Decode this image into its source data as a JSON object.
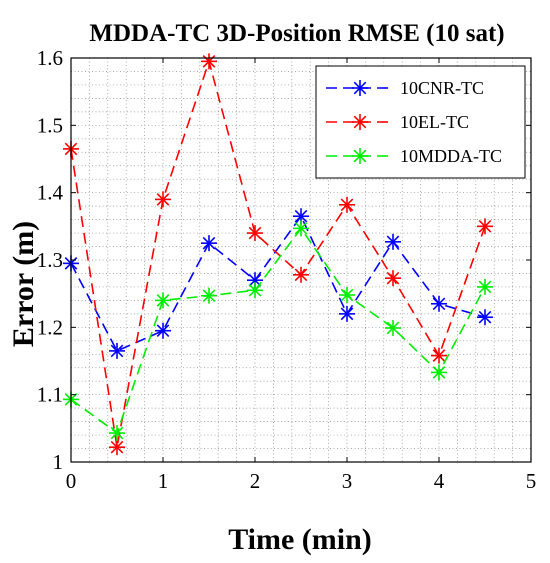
{
  "chart_data": {
    "type": "line",
    "title": "MDDA-TC 3D-Position RMSE (10 sat)",
    "xlabel": "Time (min)",
    "ylabel": "Error (m)",
    "xlim": [
      0,
      5
    ],
    "ylim": [
      1,
      1.6
    ],
    "xticks": [
      0,
      1,
      2,
      3,
      4,
      5
    ],
    "yticks": [
      1,
      1.1,
      1.2,
      1.3,
      1.4,
      1.5,
      1.6
    ],
    "xtick_labels": [
      "0",
      "1",
      "2",
      "3",
      "4",
      "5"
    ],
    "ytick_labels": [
      "1",
      "1.1",
      "1.2",
      "1.3",
      "1.4",
      "1.5",
      "1.6"
    ],
    "grid": true,
    "grid_style": "dotted",
    "legend_position": "top-right",
    "x": [
      0,
      0.5,
      1,
      1.5,
      2,
      2.5,
      3,
      3.5,
      4,
      4.5
    ],
    "series": [
      {
        "name": "10CNR-TC",
        "color": "#0000ff",
        "marker": "asterisk",
        "line": "dashed",
        "values": [
          1.295,
          1.165,
          1.195,
          1.325,
          1.27,
          1.365,
          1.22,
          1.327,
          1.235,
          1.215
        ]
      },
      {
        "name": "10EL-TC",
        "color": "#ff0000",
        "marker": "asterisk",
        "line": "dashed",
        "values": [
          1.465,
          1.022,
          1.39,
          1.595,
          1.34,
          1.278,
          1.382,
          1.273,
          1.158,
          1.35
        ]
      },
      {
        "name": "10MDDA-TC",
        "color": "#00ee00",
        "marker": "asterisk",
        "line": "dashed",
        "values": [
          1.093,
          1.043,
          1.24,
          1.247,
          1.255,
          1.347,
          1.248,
          1.199,
          1.133,
          1.26
        ]
      }
    ]
  }
}
